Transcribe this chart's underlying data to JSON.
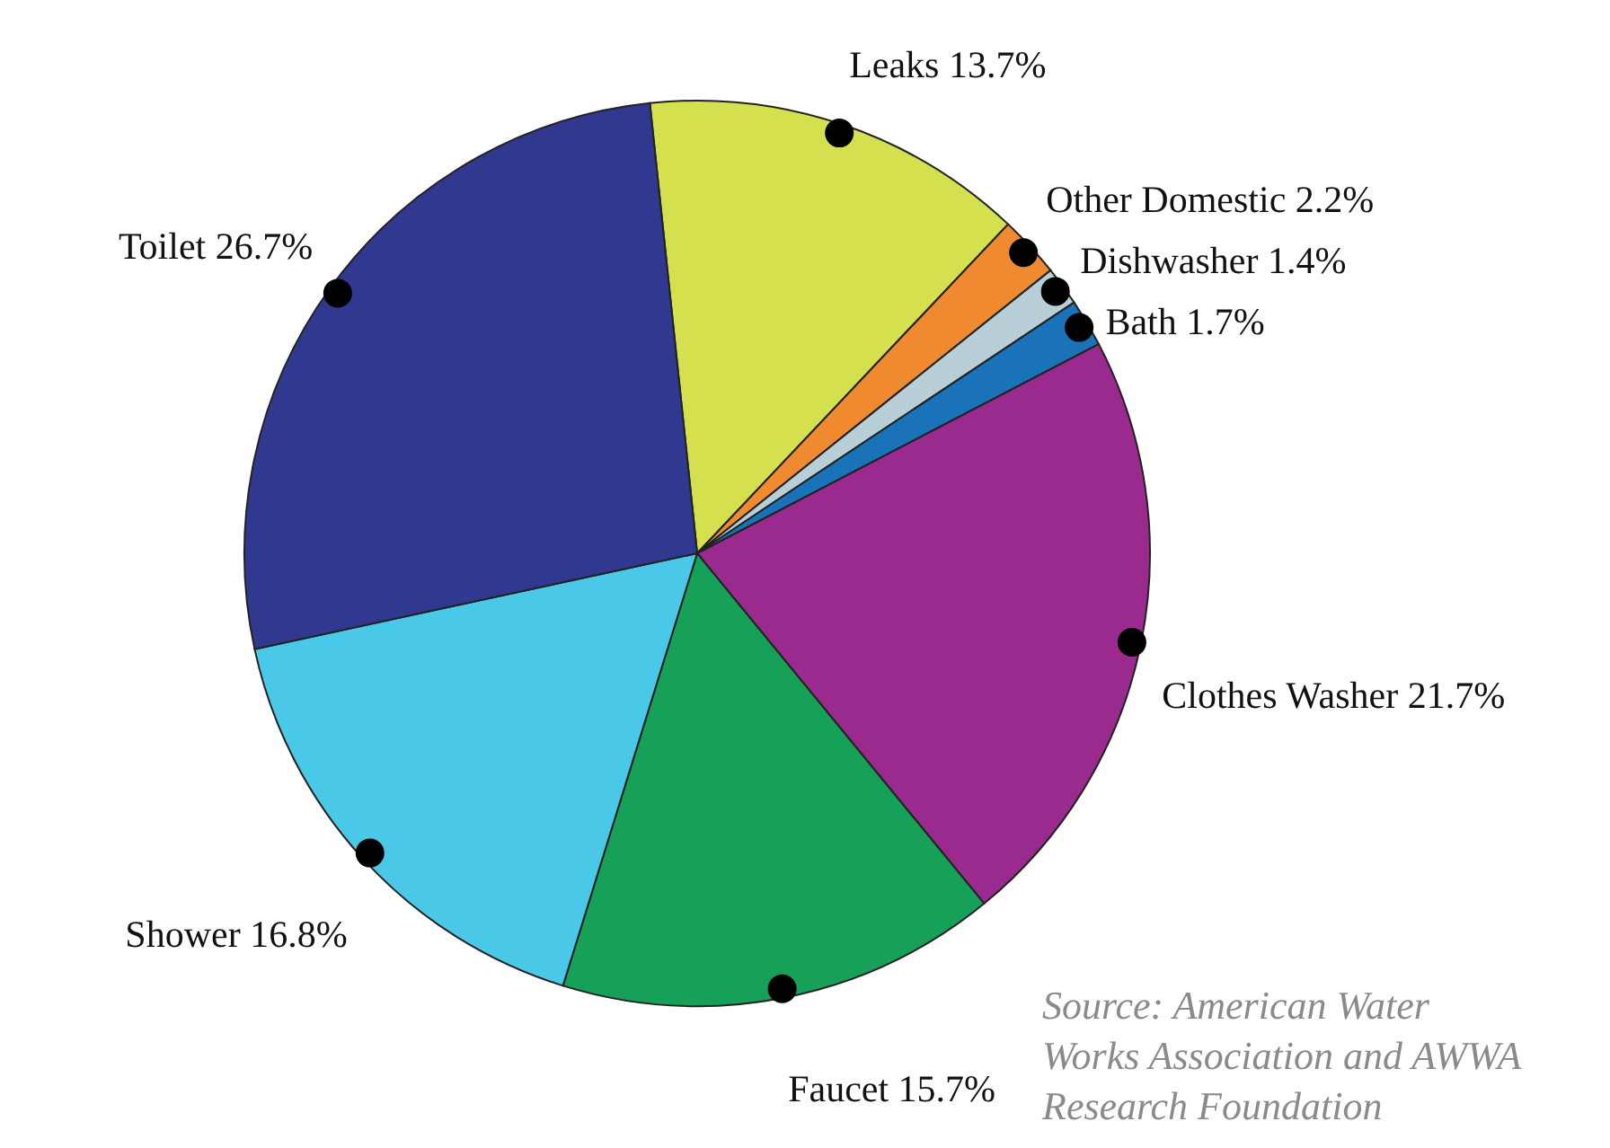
{
  "chart_data": {
    "type": "pie",
    "categories": [
      "Leaks",
      "Other Domestic",
      "Dishwasher",
      "Bath",
      "Clothes Washer",
      "Faucet",
      "Shower",
      "Toilet"
    ],
    "values": [
      13.7,
      2.2,
      1.4,
      1.7,
      21.7,
      15.7,
      16.8,
      26.7
    ],
    "value_labels": [
      "13.7%",
      "2.2%",
      "1.4%",
      "1.7%",
      "21.7%",
      "15.7%",
      "16.8%",
      "26.7%"
    ],
    "colors": [
      "#d4e04e",
      "#f08a30",
      "#b9cfd8",
      "#1a72b8",
      "#9a2a8e",
      "#16a058",
      "#4ac8e8",
      "#303890"
    ],
    "annotations": [
      "Source: American Water Works Association and AWWA Research Foundation"
    ],
    "legend": false
  }
}
